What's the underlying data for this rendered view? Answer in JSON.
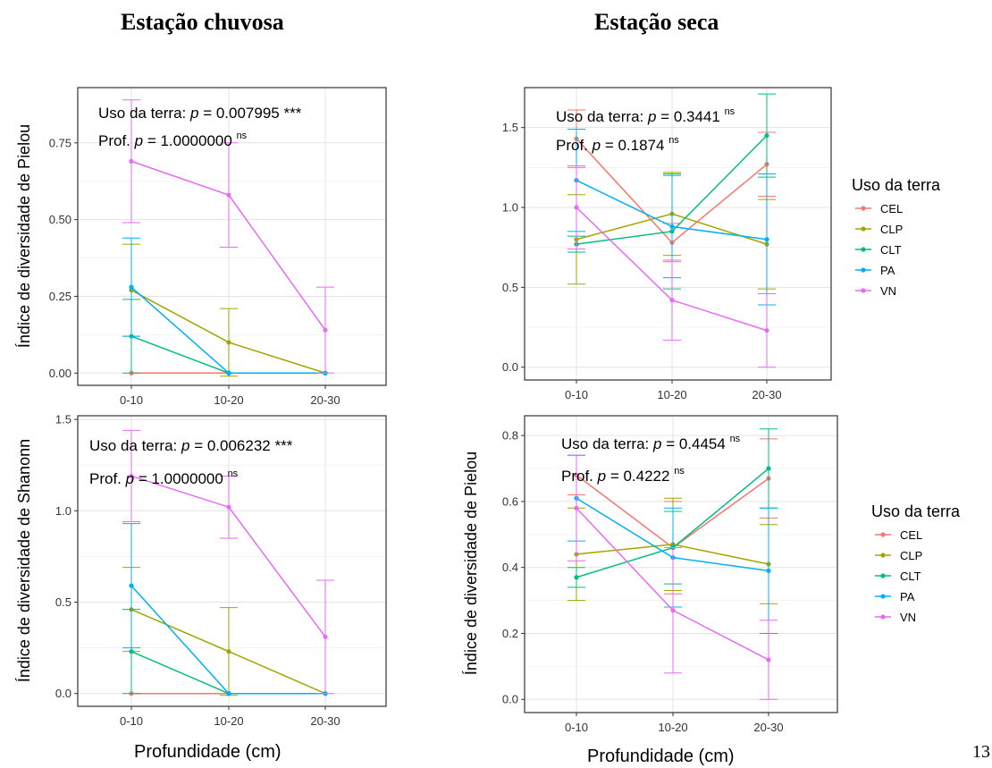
{
  "titles": {
    "left": "Estação chuvosa",
    "right": "Estação seca"
  },
  "x_axis_title": "Profundidade (cm)",
  "page_number": "13",
  "colors": {
    "CEL": "#F8766D",
    "CLP": "#A3A500",
    "CLT": "#00BF7D",
    "PA": "#00B0F6",
    "VN": "#E76BF3"
  },
  "legend": {
    "title": "Uso da terra",
    "entries": [
      "CEL",
      "CLP",
      "CLT",
      "PA",
      "VN"
    ]
  },
  "chart_data": [
    {
      "type": "line",
      "ylabel": "Índice de diversidade de Pielou",
      "categories": [
        "0-10",
        "10-20",
        "20-30"
      ],
      "ylim": [
        -0.04,
        0.93
      ],
      "yticks": [
        0.0,
        0.25,
        0.5,
        0.75
      ],
      "ytick_labels": [
        "0.00",
        "0.25",
        "0.50",
        "0.75"
      ],
      "annotation": {
        "line1": "Uso da terra: ",
        "p_symbol": "p",
        "line1_value": " = 0.007995 ***",
        "line2": "Prof. ",
        "line2_value": " = 1.0000000 ",
        "ns": "ns"
      },
      "series": [
        {
          "name": "CEL",
          "values": [
            0,
            0,
            0
          ],
          "err": [
            0,
            0,
            0
          ]
        },
        {
          "name": "CLP",
          "values": [
            0.27,
            0.1,
            0
          ],
          "err": [
            0.15,
            0.11,
            0
          ]
        },
        {
          "name": "CLT",
          "values": [
            0.12,
            0,
            0
          ],
          "err": [
            0.12,
            0,
            0
          ]
        },
        {
          "name": "PA",
          "values": [
            0.28,
            0,
            0
          ],
          "err": [
            0.16,
            0,
            0
          ]
        },
        {
          "name": "VN",
          "values": [
            0.69,
            0.58,
            0.14
          ],
          "err": [
            0.2,
            0.17,
            0.14
          ]
        }
      ]
    },
    {
      "type": "line",
      "ylabel": "",
      "categories": [
        "0-10",
        "10-20",
        "20-30"
      ],
      "ylim": [
        -0.08,
        1.75
      ],
      "yticks": [
        0.0,
        0.5,
        1.0,
        1.5
      ],
      "ytick_labels": [
        "0.0",
        "0.5",
        "1.0",
        "1.5"
      ],
      "annotation": {
        "line1": "Uso da terra: ",
        "p_symbol": "p",
        "line1_value": " = 0.3441 ",
        "line1_sup": "ns",
        "line2": "Prof. ",
        "line2_value": " =  0.1874 ",
        "ns": "ns"
      },
      "series": [
        {
          "name": "CEL",
          "values": [
            1.43,
            0.78,
            1.27
          ],
          "err": [
            0.18,
            0.12,
            0.2
          ]
        },
        {
          "name": "CLP",
          "values": [
            0.8,
            0.96,
            0.77
          ],
          "err": [
            0.28,
            0.26,
            0.28
          ]
        },
        {
          "name": "CLT",
          "values": [
            0.77,
            0.85,
            1.45
          ],
          "err": [
            0.05,
            0.36,
            0.26
          ]
        },
        {
          "name": "PA",
          "values": [
            1.17,
            0.88,
            0.8
          ],
          "err": [
            0.32,
            0.32,
            0.41
          ]
        },
        {
          "name": "VN",
          "values": [
            1.0,
            0.42,
            0.23
          ],
          "err": [
            0.26,
            0.25,
            0.23
          ]
        }
      ]
    },
    {
      "type": "line",
      "ylabel": "Índice de diversidade de Shanonn",
      "categories": [
        "0-10",
        "10-20",
        "20-30"
      ],
      "ylim": [
        -0.07,
        1.52
      ],
      "yticks": [
        0.0,
        0.5,
        1.0,
        1.5
      ],
      "ytick_labels": [
        "0.0",
        "0.5",
        "1.0",
        "1.5"
      ],
      "annotation": {
        "line1": "Uso da terra: ",
        "p_symbol": "p",
        "line1_value": " = 0.006232 ***",
        "line2": "Prof. ",
        "line2_value": " = 1.0000000 ",
        "ns": "ns"
      },
      "series": [
        {
          "name": "CEL",
          "values": [
            0,
            0,
            0
          ],
          "err": [
            0,
            0,
            0
          ]
        },
        {
          "name": "CLP",
          "values": [
            0.46,
            0.23,
            0
          ],
          "err": [
            0.23,
            0.24,
            0
          ]
        },
        {
          "name": "CLT",
          "values": [
            0.23,
            0,
            0
          ],
          "err": [
            0.23,
            0,
            0
          ]
        },
        {
          "name": "PA",
          "values": [
            0.59,
            0,
            0
          ],
          "err": [
            0.34,
            0,
            0
          ]
        },
        {
          "name": "VN",
          "values": [
            1.19,
            1.02,
            0.31
          ],
          "err": [
            0.25,
            0.17,
            0.31
          ]
        }
      ]
    },
    {
      "type": "line",
      "ylabel": "Índice de diversidade de Pielou",
      "categories": [
        "0-10",
        "10-20",
        "20-30"
      ],
      "ylim": [
        -0.04,
        0.86
      ],
      "yticks": [
        0.0,
        0.2,
        0.4,
        0.6,
        0.8
      ],
      "ytick_labels": [
        "0.0",
        "0.2",
        "0.4",
        "0.6",
        "0.8"
      ],
      "annotation": {
        "line1": "Uso da terra: ",
        "p_symbol": "p",
        "line1_value": " = 0.4454 ",
        "line1_sup": "ns",
        "line2": "Prof. ",
        "line2_value": " =  0.4222 ",
        "ns": "ns"
      },
      "series": [
        {
          "name": "CEL",
          "values": [
            0.68,
            0.46,
            0.67
          ],
          "err": [
            0.06,
            0.14,
            0.12
          ]
        },
        {
          "name": "CLP",
          "values": [
            0.44,
            0.47,
            0.41
          ],
          "err": [
            0.14,
            0.14,
            0.12
          ]
        },
        {
          "name": "CLT",
          "values": [
            0.37,
            0.46,
            0.7
          ],
          "err": [
            0.03,
            0.11,
            0.12
          ]
        },
        {
          "name": "PA",
          "values": [
            0.61,
            0.43,
            0.39
          ],
          "err": [
            0.13,
            0.15,
            0.19
          ]
        },
        {
          "name": "VN",
          "values": [
            0.58,
            0.27,
            0.12
          ],
          "err": [
            0.16,
            0.19,
            0.12
          ]
        }
      ]
    }
  ]
}
